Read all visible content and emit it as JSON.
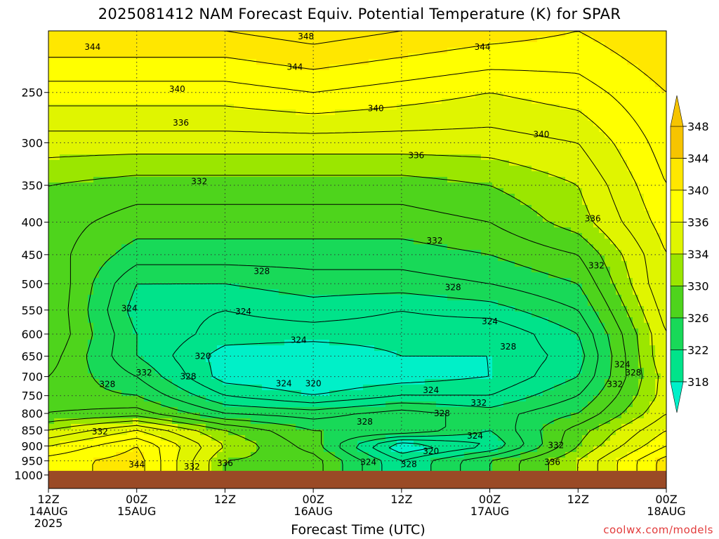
{
  "chart_data": {
    "type": "heatmap",
    "title": "2025081412 NAM Forecast Equiv. Potential Temperature (K) for SPAR",
    "xlabel": "Forecast Time (UTC)",
    "ylabel": "",
    "credit": "coolwx.com/models",
    "x_ticks": [
      {
        "label": [
          "12Z",
          "14AUG",
          "2025"
        ],
        "hours": 0
      },
      {
        "label": [
          "00Z",
          "15AUG"
        ],
        "hours": 12
      },
      {
        "label": [
          "12Z"
        ],
        "hours": 24
      },
      {
        "label": [
          "00Z",
          "16AUG"
        ],
        "hours": 36
      },
      {
        "label": [
          "12Z"
        ],
        "hours": 48
      },
      {
        "label": [
          "00Z",
          "17AUG"
        ],
        "hours": 60
      },
      {
        "label": [
          "12Z"
        ],
        "hours": 72
      },
      {
        "label": [
          "00Z",
          "18AUG"
        ],
        "hours": 84
      }
    ],
    "x_range_hours": [
      0,
      84
    ],
    "y_ticks": [
      250,
      300,
      350,
      400,
      450,
      500,
      550,
      600,
      650,
      700,
      750,
      800,
      850,
      900,
      950,
      1000
    ],
    "y_range_hpa": [
      200,
      1050
    ],
    "y_scale": "log",
    "surface_pressure_hpa": 985,
    "colorbar": {
      "labels": [
        348,
        344,
        340,
        336,
        334,
        330,
        326,
        322,
        318
      ],
      "colors": [
        "#f6c400",
        "#ffe700",
        "#ffff00",
        "#e0f500",
        "#9be600",
        "#4ed41c",
        "#18d958",
        "#00e38a",
        "#00f0c8"
      ],
      "extend": "both"
    },
    "data_grid": {
      "hours": [
        0,
        12,
        24,
        36,
        48,
        60,
        72,
        84
      ],
      "levels_hpa": [
        200,
        250,
        300,
        350,
        400,
        450,
        500,
        550,
        600,
        650,
        700,
        750,
        800,
        850,
        900,
        950
      ],
      "theta_e_k": [
        [
          346,
          346,
          346,
          347,
          346,
          345,
          344,
          346
        ],
        [
          341,
          341,
          341,
          342,
          341,
          340,
          341,
          344
        ],
        [
          337,
          337,
          337,
          337,
          337,
          337,
          338,
          343
        ],
        [
          334,
          333,
          333,
          333,
          333,
          334,
          336,
          342
        ],
        [
          333,
          331,
          331,
          331,
          331,
          332,
          335,
          341
        ],
        [
          333,
          329,
          329,
          329,
          329,
          330,
          332,
          340
        ],
        [
          334,
          326,
          326,
          327,
          327,
          328,
          330,
          340
        ],
        [
          334,
          325,
          324,
          325,
          324,
          325,
          328,
          339
        ],
        [
          334,
          326,
          323,
          323,
          323,
          322,
          326,
          338
        ],
        [
          333,
          326,
          321,
          320,
          322,
          322,
          325,
          338
        ],
        [
          332,
          328,
          321,
          320,
          321,
          322,
          326,
          337
        ],
        [
          331,
          330,
          324,
          322,
          324,
          324,
          328,
          337
        ],
        [
          332,
          333,
          328,
          327,
          329,
          327,
          330,
          338
        ],
        [
          336,
          340,
          334,
          330,
          330,
          326,
          333,
          340
        ],
        [
          340,
          344,
          336,
          331,
          320,
          324,
          334,
          342
        ],
        [
          343,
          345,
          334,
          333,
          324,
          330,
          336,
          345
        ]
      ]
    },
    "contour_labels": [
      {
        "text": "348",
        "hour": 35.0,
        "hpa": 204
      },
      {
        "text": "344",
        "hour": 6.0,
        "hpa": 212
      },
      {
        "text": "344",
        "hour": 59.0,
        "hpa": 212
      },
      {
        "text": "344",
        "hour": 33.5,
        "hpa": 228
      },
      {
        "text": "340",
        "hour": 17.5,
        "hpa": 247
      },
      {
        "text": "340",
        "hour": 44.5,
        "hpa": 265
      },
      {
        "text": "340",
        "hour": 67.0,
        "hpa": 291
      },
      {
        "text": "336",
        "hour": 18.0,
        "hpa": 279
      },
      {
        "text": "336",
        "hour": 50.0,
        "hpa": 314
      },
      {
        "text": "332",
        "hour": 20.5,
        "hpa": 345
      },
      {
        "text": "336",
        "hour": 74.0,
        "hpa": 395
      },
      {
        "text": "332",
        "hour": 52.5,
        "hpa": 428
      },
      {
        "text": "332",
        "hour": 74.5,
        "hpa": 468
      },
      {
        "text": "328",
        "hour": 29.0,
        "hpa": 478
      },
      {
        "text": "328",
        "hour": 55.0,
        "hpa": 507
      },
      {
        "text": "324",
        "hour": 11.0,
        "hpa": 547
      },
      {
        "text": "324",
        "hour": 26.5,
        "hpa": 553
      },
      {
        "text": "324",
        "hour": 60.0,
        "hpa": 573
      },
      {
        "text": "324",
        "hour": 34.0,
        "hpa": 613
      },
      {
        "text": "328",
        "hour": 62.5,
        "hpa": 628
      },
      {
        "text": "320",
        "hour": 21.0,
        "hpa": 650
      },
      {
        "text": "332",
        "hour": 13.0,
        "hpa": 690
      },
      {
        "text": "328",
        "hour": 19.0,
        "hpa": 700
      },
      {
        "text": "324",
        "hour": 32.0,
        "hpa": 718
      },
      {
        "text": "320",
        "hour": 36.0,
        "hpa": 718
      },
      {
        "text": "324",
        "hour": 78.0,
        "hpa": 670
      },
      {
        "text": "328",
        "hour": 79.5,
        "hpa": 690
      },
      {
        "text": "332",
        "hour": 77.0,
        "hpa": 720
      },
      {
        "text": "328",
        "hour": 8.0,
        "hpa": 720
      },
      {
        "text": "324",
        "hour": 52.0,
        "hpa": 735
      },
      {
        "text": "332",
        "hour": 58.5,
        "hpa": 770
      },
      {
        "text": "328",
        "hour": 53.5,
        "hpa": 800
      },
      {
        "text": "328",
        "hour": 43.0,
        "hpa": 825
      },
      {
        "text": "332",
        "hour": 7.0,
        "hpa": 855
      },
      {
        "text": "324",
        "hour": 58.0,
        "hpa": 868
      },
      {
        "text": "320",
        "hour": 52.0,
        "hpa": 918
      },
      {
        "text": "332",
        "hour": 69.0,
        "hpa": 898
      },
      {
        "text": "336",
        "hour": 68.5,
        "hpa": 955
      },
      {
        "text": "324",
        "hour": 43.5,
        "hpa": 955
      },
      {
        "text": "328",
        "hour": 49.0,
        "hpa": 962
      },
      {
        "text": "344",
        "hour": 12.0,
        "hpa": 963
      },
      {
        "text": "332",
        "hour": 19.5,
        "hpa": 970
      },
      {
        "text": "336",
        "hour": 24.0,
        "hpa": 958
      }
    ]
  }
}
